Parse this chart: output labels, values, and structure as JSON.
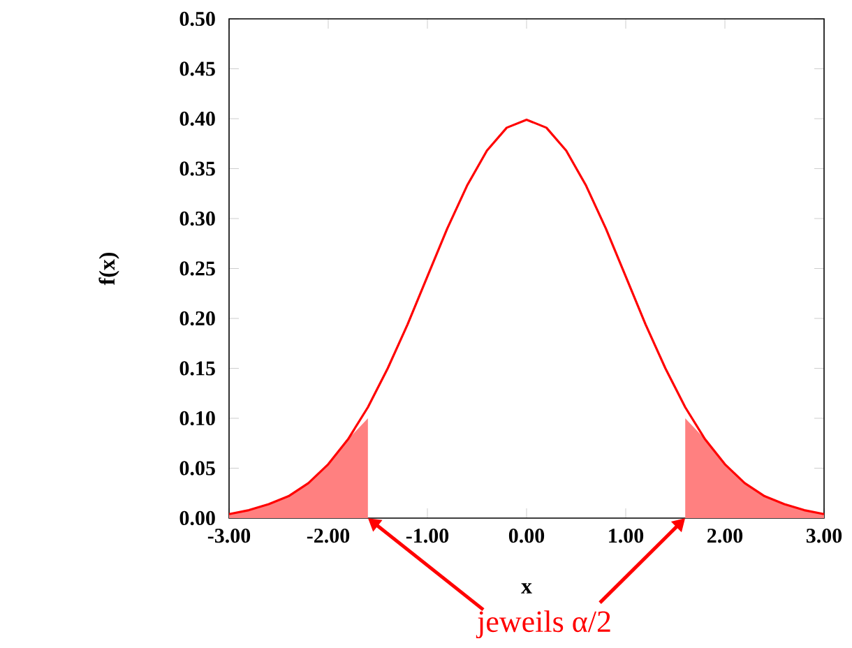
{
  "chart_data": {
    "type": "line",
    "xlabel": "x",
    "ylabel": "f(x)",
    "annotations": [
      "jeweils α/2"
    ],
    "xlim": [
      -3,
      3
    ],
    "xticks": [
      {
        "value": -3,
        "label": "-3.00"
      },
      {
        "value": -2,
        "label": "-2.00"
      },
      {
        "value": -1,
        "label": "-1.00"
      },
      {
        "value": 0,
        "label": "0.00"
      },
      {
        "value": 1,
        "label": "1.00"
      },
      {
        "value": 2,
        "label": "2.00"
      },
      {
        "value": 3,
        "label": "3.00"
      }
    ],
    "ylim": [
      0,
      0.5
    ],
    "yticks": [
      {
        "value": 0,
        "label": "0.00"
      },
      {
        "value": 0.05,
        "label": "0.05"
      },
      {
        "value": 0.1,
        "label": "0.10"
      },
      {
        "value": 0.15,
        "label": "0.15"
      },
      {
        "value": 0.2,
        "label": "0.20"
      },
      {
        "value": 0.25,
        "label": "0.25"
      },
      {
        "value": 0.3,
        "label": "0.30"
      },
      {
        "value": 0.35,
        "label": "0.35"
      },
      {
        "value": 0.4,
        "label": "0.40"
      },
      {
        "value": 0.45,
        "label": "0.45"
      },
      {
        "value": 0.5,
        "label": "0.50"
      }
    ],
    "series": [
      {
        "type": "area",
        "color": "#ff8080",
        "x": [
          -3,
          -2.8,
          -2.6,
          -2.4,
          -2.2,
          -2.0,
          -1.8,
          -1.6
        ],
        "values": [
          0.004,
          0.008,
          0.014,
          0.022,
          0.035,
          0.054,
          0.079,
          0.1
        ]
      },
      {
        "type": "area",
        "color": "#ff8080",
        "x": [
          1.6,
          1.8,
          2.0,
          2.2,
          2.4,
          2.6,
          2.8,
          3.0
        ],
        "values": [
          0.1,
          0.079,
          0.054,
          0.035,
          0.022,
          0.014,
          0.008,
          0.004
        ]
      },
      {
        "color": "#ff0000",
        "x": [
          -3,
          -2.8,
          -2.6,
          -2.4,
          -2.2,
          -2.0,
          -1.8,
          -1.6,
          -1.4,
          -1.2,
          -1.0,
          -0.8,
          -0.6,
          -0.4,
          -0.2,
          0,
          0.2,
          0.4,
          0.6,
          0.8,
          1.0,
          1.2,
          1.4,
          1.6,
          1.8,
          2.0,
          2.2,
          2.4,
          2.6,
          2.8,
          3.0
        ],
        "values": [
          0.004,
          0.008,
          0.014,
          0.022,
          0.035,
          0.054,
          0.079,
          0.111,
          0.15,
          0.194,
          0.242,
          0.29,
          0.333,
          0.368,
          0.391,
          0.399,
          0.391,
          0.368,
          0.333,
          0.29,
          0.242,
          0.194,
          0.15,
          0.111,
          0.079,
          0.054,
          0.035,
          0.022,
          0.014,
          0.008,
          0.004
        ]
      }
    ]
  }
}
